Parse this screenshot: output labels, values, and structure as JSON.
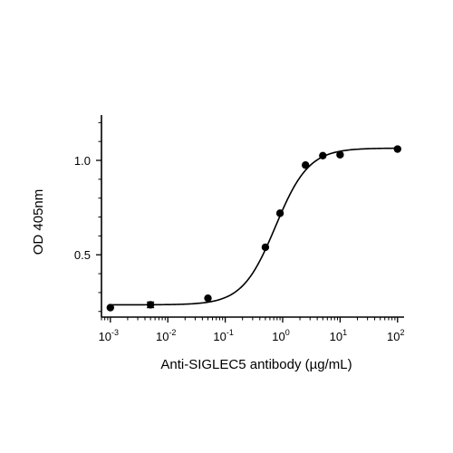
{
  "chart_data": {
    "type": "scatter",
    "xlabel": "Anti-SIGLEC5 antibody (µg/mL)",
    "ylabel": "OD 405nm",
    "x_scale": "log10",
    "xlim": [
      0.0007,
      130
    ],
    "ylim": [
      0.17,
      1.24
    ],
    "x_ticks": [
      {
        "value": 0.001,
        "base": "10",
        "exp": "-3"
      },
      {
        "value": 0.01,
        "base": "10",
        "exp": "-2"
      },
      {
        "value": 0.1,
        "base": "10",
        "exp": "-1"
      },
      {
        "value": 1,
        "base": "10",
        "exp": "0"
      },
      {
        "value": 10,
        "base": "10",
        "exp": "1"
      },
      {
        "value": 100,
        "base": "10",
        "exp": "2"
      }
    ],
    "y_ticks": [
      {
        "value": 0.5,
        "label": "0.5"
      },
      {
        "value": 1.0,
        "label": "1.0"
      }
    ],
    "points": [
      {
        "x": 0.001,
        "y": 0.22
      },
      {
        "x": 0.005,
        "y": 0.235,
        "err": 0.015
      },
      {
        "x": 0.05,
        "y": 0.27
      },
      {
        "x": 0.5,
        "y": 0.54
      },
      {
        "x": 0.9,
        "y": 0.72
      },
      {
        "x": 2.5,
        "y": 0.975
      },
      {
        "x": 5,
        "y": 1.025
      },
      {
        "x": 10,
        "y": 1.03
      },
      {
        "x": 100,
        "y": 1.06
      }
    ],
    "fit": {
      "model": "4PL",
      "bottom": 0.235,
      "top": 1.065,
      "ec50": 0.75,
      "hill": 1.5
    },
    "grid": false,
    "legend": "none"
  }
}
